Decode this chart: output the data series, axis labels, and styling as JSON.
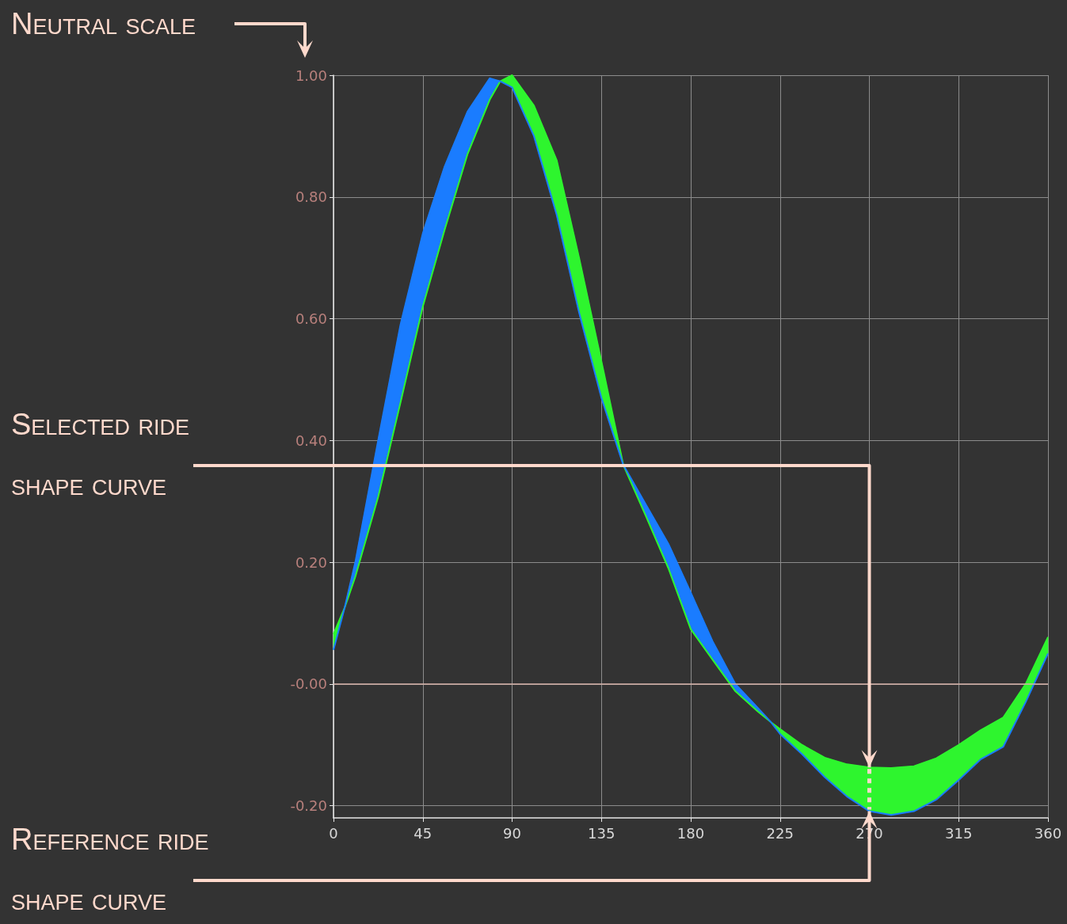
{
  "chart_data": {
    "type": "line",
    "x": [
      0,
      5.6,
      11,
      22.5,
      33.75,
      45,
      56,
      67.5,
      78.75,
      84,
      90,
      101,
      112.5,
      123.75,
      135,
      146,
      157.5,
      168.75,
      180,
      191,
      202.5,
      213.75,
      220.5,
      225,
      236,
      247.5,
      258.75,
      270,
      281,
      292.5,
      303.75,
      315,
      326,
      337.5,
      348.75,
      360
    ],
    "series": [
      {
        "color": "#2ef52e",
        "values": [
          0.082,
          0.125,
          0.176,
          0.307,
          0.462,
          0.62,
          0.746,
          0.87,
          0.96,
          0.99,
          1.0,
          0.95,
          0.86,
          0.7,
          0.53,
          0.36,
          0.275,
          0.19,
          0.09,
          0.04,
          -0.012,
          -0.045,
          -0.063,
          -0.074,
          -0.1,
          -0.121,
          -0.132,
          -0.137,
          -0.138,
          -0.135,
          -0.122,
          -0.1,
          -0.076,
          -0.055,
          0.0,
          0.077
        ],
        "upper": [
          0.082,
          0.125,
          null,
          null,
          null,
          null,
          null,
          null,
          null,
          0.99,
          1.0,
          0.95,
          0.86,
          0.7,
          0.53,
          0.36,
          null,
          null,
          null,
          null,
          null,
          null,
          -0.063,
          -0.074,
          -0.1,
          -0.121,
          -0.132,
          -0.137,
          -0.138,
          -0.135,
          -0.122,
          -0.1,
          -0.076,
          -0.055,
          0.0,
          0.077
        ],
        "lower": [
          0.056,
          0.125,
          null,
          null,
          null,
          null,
          null,
          null,
          null,
          0.99,
          0.98,
          0.9,
          0.77,
          0.61,
          0.47,
          0.36,
          null,
          null,
          null,
          null,
          null,
          null,
          -0.063,
          -0.082,
          -0.115,
          -0.153,
          -0.185,
          -0.209,
          -0.215,
          -0.209,
          -0.19,
          -0.158,
          -0.124,
          -0.103,
          -0.03,
          0.05
        ]
      },
      {
        "color": "#1a7cff",
        "values": [
          0.056,
          0.125,
          0.2,
          0.4,
          0.59,
          0.74,
          0.85,
          0.94,
          0.995,
          0.99,
          0.98,
          0.9,
          0.77,
          0.61,
          0.47,
          0.36,
          0.294,
          0.23,
          0.15,
          0.07,
          0.0,
          -0.039,
          -0.063,
          -0.082,
          -0.115,
          -0.153,
          -0.185,
          -0.209,
          -0.215,
          -0.209,
          -0.19,
          -0.158,
          -0.124,
          -0.103,
          -0.03,
          0.05
        ],
        "upper": [
          null,
          0.125,
          0.2,
          0.4,
          0.59,
          0.74,
          0.85,
          0.94,
          0.995,
          0.99,
          null,
          null,
          null,
          null,
          null,
          0.36,
          0.294,
          0.23,
          0.15,
          0.07,
          0.0,
          -0.039,
          -0.063,
          null,
          null,
          null,
          null,
          null,
          null,
          null,
          null,
          null,
          null,
          null,
          null,
          null
        ],
        "lower": [
          null,
          0.125,
          0.176,
          0.307,
          0.462,
          0.62,
          0.746,
          0.87,
          0.96,
          0.99,
          null,
          null,
          null,
          null,
          null,
          0.36,
          0.275,
          0.19,
          0.09,
          0.04,
          -0.012,
          -0.045,
          -0.063,
          null,
          null,
          null,
          null,
          null,
          null,
          null,
          null,
          null,
          null,
          null,
          null,
          null
        ]
      }
    ],
    "xlim": [
      0,
      360
    ],
    "xticks": [
      0,
      45,
      90,
      135,
      180,
      225,
      270,
      315,
      360
    ],
    "ylim": [
      -0.22,
      1.0
    ],
    "yticks": [
      {
        "value": -0.2,
        "label": "-0.20"
      },
      {
        "value": 0,
        "label": "-0.00"
      },
      {
        "value": 0.2,
        "label": "0.20"
      },
      {
        "value": 0.4,
        "label": "0.40"
      },
      {
        "value": 0.6,
        "label": "0.60"
      },
      {
        "value": 0.8,
        "label": "0.80"
      },
      {
        "value": 1.0,
        "label": "1.00"
      }
    ],
    "grid": true,
    "ref_lines": [
      {
        "axis": "y",
        "value": 0,
        "color": "#d9b3aa"
      }
    ],
    "annotations": [
      "Neutral scale",
      {
        "text": "Selected ride shape curve",
        "x": 270,
        "y": -0.137
      },
      {
        "text": "Reference ride shape curve",
        "x": 270,
        "y": -0.209
      }
    ]
  }
}
